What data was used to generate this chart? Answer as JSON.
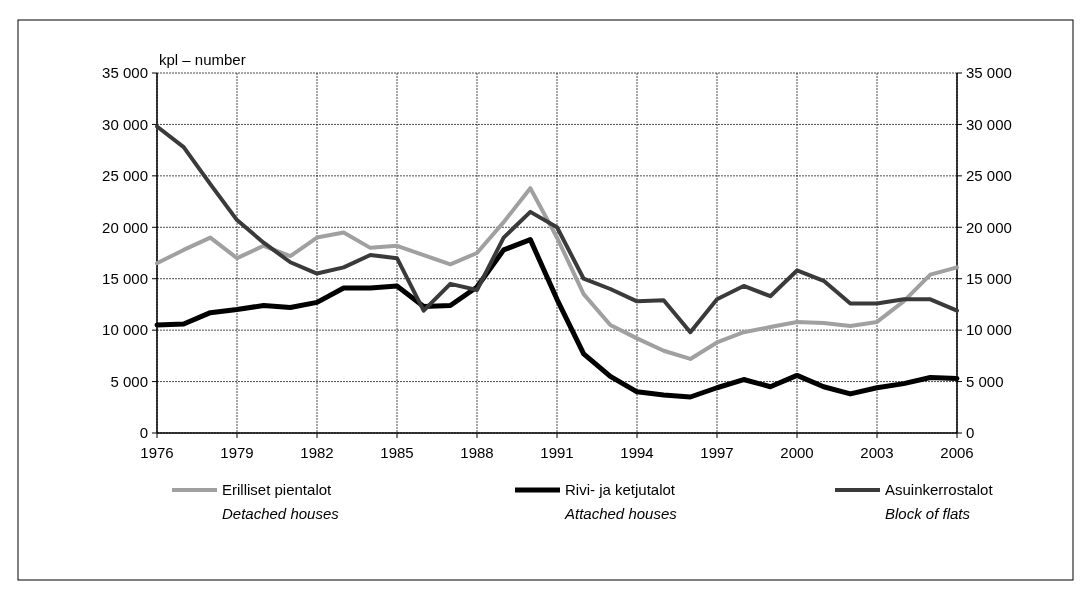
{
  "chart_data": {
    "type": "line",
    "ylabel": "kpl – number",
    "x": [
      1976,
      1977,
      1978,
      1979,
      1980,
      1981,
      1982,
      1983,
      1984,
      1985,
      1986,
      1987,
      1988,
      1989,
      1990,
      1991,
      1992,
      1993,
      1994,
      1995,
      1996,
      1997,
      1998,
      1999,
      2000,
      2001,
      2002,
      2003,
      2004,
      2005,
      2006
    ],
    "series": [
      {
        "name": "Erilliset pientalot\nDetached houses",
        "color": "#a0a0a0",
        "values": [
          16500,
          17800,
          19000,
          17000,
          18200,
          17200,
          19000,
          19500,
          18000,
          18200,
          17300,
          16400,
          17500,
          20500,
          23800,
          19000,
          13500,
          10500,
          9200,
          8000,
          7200,
          8800,
          9800,
          10300,
          10800,
          10700,
          10400,
          10800,
          12800,
          15400,
          16100
        ]
      },
      {
        "name": "Rivi- ja ketjutalot\nAttached houses",
        "color": "#000000",
        "values": [
          10500,
          10600,
          11700,
          12000,
          12400,
          12200,
          12700,
          14100,
          14100,
          14300,
          12300,
          12400,
          14200,
          17800,
          18800,
          13000,
          7700,
          5500,
          4000,
          3700,
          3500,
          4400,
          5200,
          4500,
          5600,
          4500,
          3800,
          4400,
          4800,
          5400,
          5300
        ]
      },
      {
        "name": "Asuinkerrostalot\nBlock of flats",
        "color": "#3a3a3a",
        "values": [
          29800,
          27800,
          24200,
          20700,
          18500,
          16600,
          15500,
          16100,
          17300,
          17000,
          11900,
          14500,
          13900,
          19000,
          21500,
          20000,
          15000,
          14000,
          12800,
          12900,
          9800,
          13000,
          14300,
          13300,
          15800,
          14800,
          12600,
          12600,
          13000,
          13000,
          11900
        ]
      }
    ],
    "xlim": [
      1976,
      2006
    ],
    "xticks": [
      1976,
      1979,
      1982,
      1985,
      1988,
      1991,
      1994,
      1997,
      2000,
      2003,
      2006
    ],
    "ylim": [
      0,
      35000
    ],
    "yticks": [
      0,
      {
        "value": 5000,
        "label": "5 000"
      },
      {
        "value": 10000,
        "label": "10 000"
      },
      {
        "value": 15000,
        "label": "15 000"
      },
      {
        "value": 20000,
        "label": "20 000"
      },
      {
        "value": 25000,
        "label": "25 000"
      },
      {
        "value": 30000,
        "label": "30 000"
      },
      {
        "value": 35000,
        "label": "35 000"
      }
    ],
    "y2lim": [
      0,
      35000
    ],
    "y2ticks": [
      0,
      {
        "value": 5000,
        "label": "5 000"
      },
      {
        "value": 10000,
        "label": "10 000"
      },
      {
        "value": 15000,
        "label": "15 000"
      },
      {
        "value": 20000,
        "label": "20 000"
      },
      {
        "value": 25000,
        "label": "25 000"
      },
      {
        "value": 30000,
        "label": "30 000"
      },
      {
        "value": 35000,
        "label": "35 000"
      }
    ],
    "grid": true,
    "legend": "bottom",
    "line_style": "solid",
    "marker": "none"
  }
}
